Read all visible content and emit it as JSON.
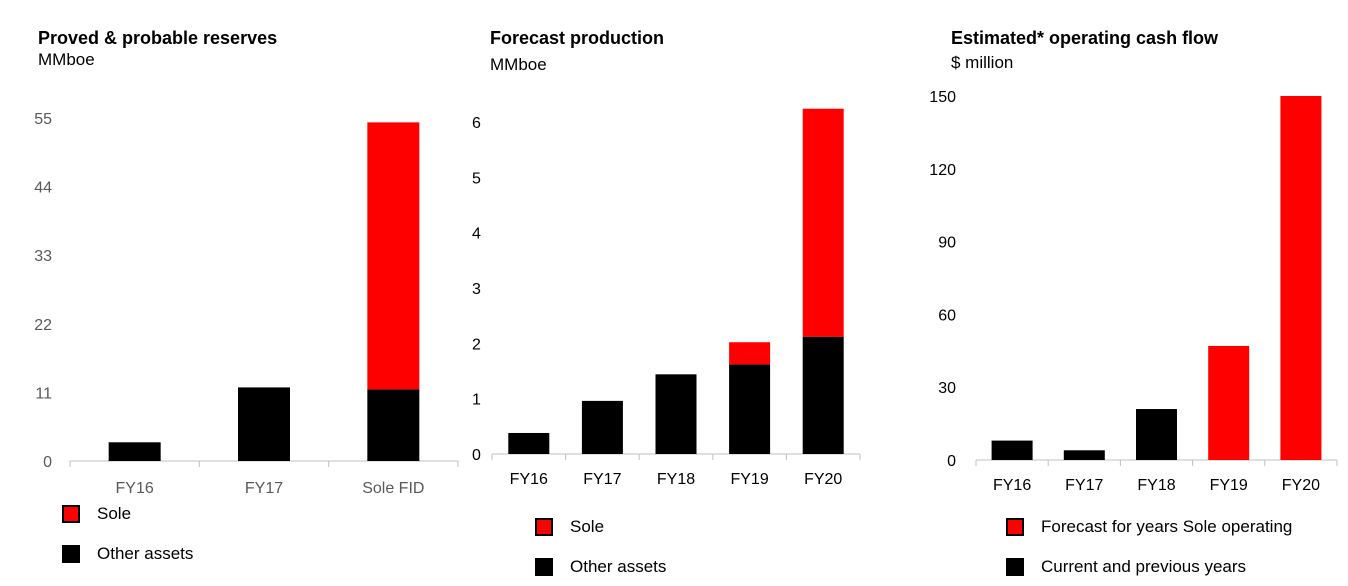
{
  "colors": {
    "sole": "#ff0000",
    "other": "#000000",
    "axis": "#c0c0c0",
    "tick_text": "#595959"
  },
  "chart_data": [
    {
      "type": "bar",
      "stacked": true,
      "title": "Proved & probable reserves",
      "subtitle": "MMboe",
      "categories": [
        "FY16",
        "FY17",
        "Sole FID"
      ],
      "yticks": [
        0,
        11,
        22,
        33,
        44,
        55
      ],
      "ylim": [
        0,
        55
      ],
      "grid": false,
      "legend_position": "bottom-left",
      "series": [
        {
          "name": "Other assets",
          "color": "#000000",
          "values": [
            3,
            11.8,
            11.5
          ]
        },
        {
          "name": "Sole",
          "color": "#ff0000",
          "values": [
            0,
            0,
            42.8
          ]
        }
      ],
      "legend": [
        {
          "label": "Sole",
          "color": "#ff0000"
        },
        {
          "label": "Other assets",
          "color": "#000000"
        }
      ]
    },
    {
      "type": "bar",
      "stacked": true,
      "title": "Forecast production",
      "subtitle": "MMboe",
      "categories": [
        "FY16",
        "FY17",
        "FY18",
        "FY19",
        "FY20"
      ],
      "yticks": [
        0,
        1,
        2,
        3,
        4,
        5,
        6
      ],
      "ylim": [
        0,
        6.5
      ],
      "grid": false,
      "legend_position": "bottom-left",
      "series": [
        {
          "name": "Other assets",
          "color": "#000000",
          "values": [
            0.38,
            0.96,
            1.44,
            1.62,
            2.12
          ]
        },
        {
          "name": "Sole",
          "color": "#ff0000",
          "values": [
            0,
            0,
            0,
            0.4,
            4.12
          ]
        }
      ],
      "legend": [
        {
          "label": "Sole",
          "color": "#ff0000"
        },
        {
          "label": "Other assets",
          "color": "#000000"
        }
      ]
    },
    {
      "type": "bar",
      "stacked": true,
      "title": "Estimated* operating cash flow",
      "subtitle": "$ million",
      "categories": [
        "FY16",
        "FY17",
        "FY18",
        "FY19",
        "FY20"
      ],
      "yticks": [
        0,
        30,
        60,
        90,
        120,
        150
      ],
      "ylim": [
        0,
        150
      ],
      "grid": false,
      "legend_position": "bottom-left",
      "series": [
        {
          "name": "Current and previous years",
          "color": "#000000",
          "values": [
            8,
            4,
            21,
            0,
            0
          ]
        },
        {
          "name": "Forecast for years Sole operating",
          "color": "#ff0000",
          "values": [
            0,
            0,
            0,
            47,
            150
          ]
        }
      ],
      "legend": [
        {
          "label": "Forecast for years Sole operating",
          "color": "#ff0000"
        },
        {
          "label": "Current and previous years",
          "color": "#000000"
        }
      ]
    }
  ]
}
